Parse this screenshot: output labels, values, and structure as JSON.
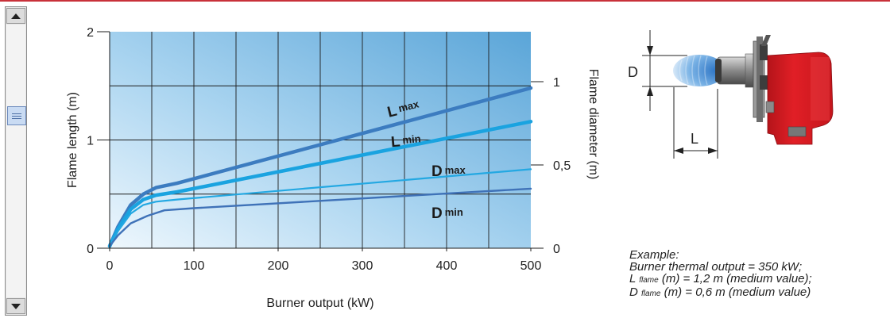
{
  "chart_data": {
    "type": "line",
    "xlabel": "Burner output (kW)",
    "ylabel": "Flame length (m)",
    "y2label": "Flame diameter (m)",
    "xlim": [
      0,
      500
    ],
    "ylim": [
      0,
      2
    ],
    "y2lim": [
      0,
      1.3
    ],
    "x_ticks": [
      "0",
      "100",
      "200",
      "300",
      "400",
      "500"
    ],
    "y_ticks": [
      "0",
      "1",
      "2"
    ],
    "y2_ticks": [
      {
        "value": 0,
        "label": "0"
      },
      {
        "value": 0.5,
        "label": "0,5"
      },
      {
        "value": 1,
        "label": "1"
      }
    ],
    "grid": true,
    "series": [
      {
        "name": "L max",
        "color": "#3c7cc0",
        "x": [
          0,
          10,
          25,
          40,
          55,
          80,
          500
        ],
        "y": [
          0.02,
          0.2,
          0.4,
          0.5,
          0.56,
          0.6,
          1.48
        ]
      },
      {
        "name": "L min",
        "color": "#1aa3e0",
        "x": [
          0,
          10,
          25,
          40,
          55,
          80,
          500
        ],
        "y": [
          0.02,
          0.18,
          0.36,
          0.45,
          0.49,
          0.52,
          1.17
        ]
      },
      {
        "name": "D max",
        "color": "#23a8e2",
        "x": [
          0,
          10,
          25,
          40,
          55,
          80,
          500
        ],
        "y": [
          0.02,
          0.16,
          0.32,
          0.4,
          0.43,
          0.45,
          0.73
        ]
      },
      {
        "name": "D min",
        "color": "#3f72b8",
        "x": [
          0,
          10,
          25,
          45,
          65,
          100,
          500
        ],
        "y": [
          0.02,
          0.12,
          0.23,
          0.3,
          0.35,
          0.37,
          0.55
        ]
      }
    ]
  },
  "diagram": {
    "d_label": "D",
    "l_label": "L"
  },
  "example": {
    "heading": "Example:",
    "line1": "Burner thermal output = 350 kW;",
    "line2_pre": "L",
    "line2_sub": "flame",
    "line2_post": "(m) = 1,2 m (medium value);",
    "line3_pre": "D",
    "line3_sub": "flame",
    "line3_post": "(m) = 0,6 m (medium value)"
  },
  "colors": {
    "accent_rule": "#c8313a",
    "burner_red": "#e11f26",
    "plot_top": "#5aa5d8",
    "plot_bottom": "#eaf5fd"
  }
}
